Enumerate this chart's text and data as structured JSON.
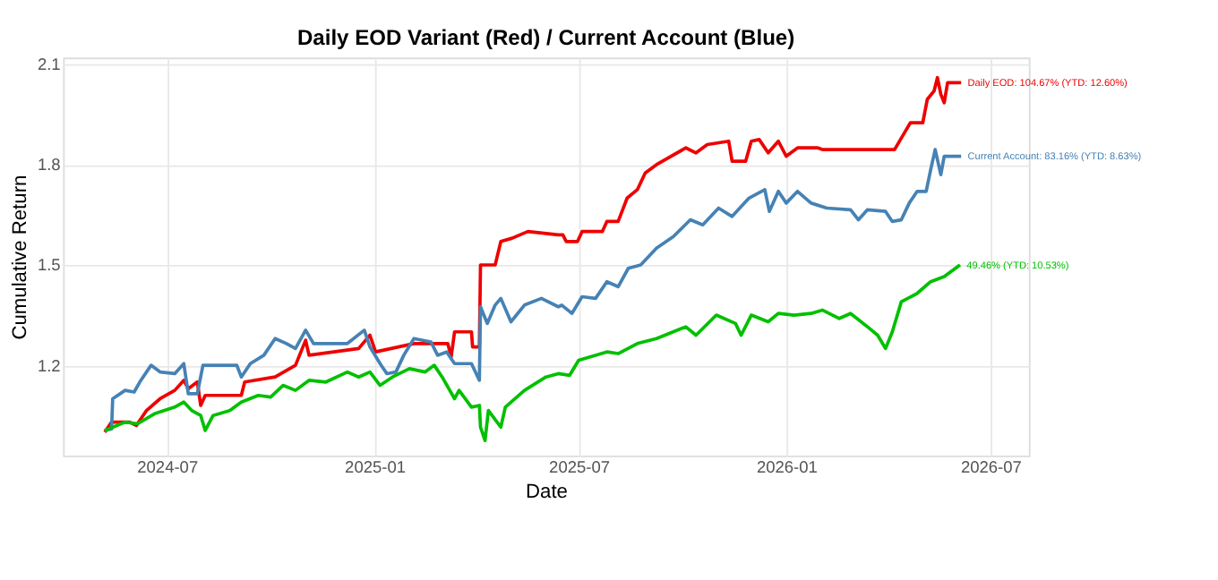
{
  "chart_data": {
    "type": "line",
    "title": "Daily EOD Variant (Red) / Current Account (Blue)",
    "xlabel": "Date",
    "ylabel": "Cumulative Return",
    "xlim": [
      "2024-03-31",
      "2026-08-04"
    ],
    "xticks": [
      "2024-07",
      "2025-01",
      "2025-07",
      "2026-01",
      "2026-07"
    ],
    "ylim": [
      0.93,
      2.12
    ],
    "yticks": [
      1.2,
      1.5,
      1.8,
      2.1
    ],
    "grid": true,
    "legend": false,
    "line_style": "solid",
    "series": [
      {
        "color": "#ee0000",
        "x": [
          "2024-05-07",
          "2024-05-13",
          "2024-05-29",
          "2024-06-04",
          "2024-06-13",
          "2024-06-25",
          "2024-07-08",
          "2024-07-16",
          "2024-07-20",
          "2024-07-28",
          "2024-07-31",
          "2024-08-04",
          "2024-09-05",
          "2024-09-08",
          "2024-10-05",
          "2024-10-23",
          "2024-11-01",
          "2024-11-04",
          "2024-12-18",
          "2024-12-28",
          "2025-01-02",
          "2025-02-05",
          "2025-03-07",
          "2025-03-10",
          "2025-03-13",
          "2025-03-28",
          "2025-03-29",
          "2025-04-04",
          "2025-04-05",
          "2025-04-18",
          "2025-04-23",
          "2025-05-03",
          "2025-05-17",
          "2025-06-13",
          "2025-06-17",
          "2025-06-20",
          "2025-06-30",
          "2025-07-04",
          "2025-07-22",
          "2025-07-26",
          "2025-08-05",
          "2025-08-13",
          "2025-08-22",
          "2025-08-29",
          "2025-09-08",
          "2025-10-04",
          "2025-10-13",
          "2025-10-23",
          "2025-11-11",
          "2025-11-14",
          "2025-11-26",
          "2025-12-01",
          "2025-12-08",
          "2025-12-16",
          "2025-12-25",
          "2026-01-01",
          "2026-01-11",
          "2026-01-29",
          "2026-02-02",
          "2026-04-07",
          "2026-04-14",
          "2026-04-21",
          "2026-05-02",
          "2026-05-06",
          "2026-05-12",
          "2026-05-15",
          "2026-05-18",
          "2026-05-21",
          "2026-05-24",
          "2026-06-05"
        ],
        "values": [
          1.0,
          1.03,
          1.03,
          1.02,
          1.065,
          1.1,
          1.125,
          1.155,
          1.13,
          1.15,
          1.08,
          1.11,
          1.11,
          1.15,
          1.165,
          1.2,
          1.275,
          1.23,
          1.25,
          1.29,
          1.24,
          1.265,
          1.265,
          1.225,
          1.3,
          1.3,
          1.255,
          1.255,
          1.5,
          1.5,
          1.57,
          1.58,
          1.6,
          1.59,
          1.59,
          1.57,
          1.57,
          1.6,
          1.6,
          1.63,
          1.63,
          1.7,
          1.725,
          1.775,
          1.8,
          1.85,
          1.835,
          1.86,
          1.87,
          1.81,
          1.81,
          1.87,
          1.875,
          1.835,
          1.87,
          1.825,
          1.85,
          1.85,
          1.845,
          1.845,
          1.885,
          1.925,
          1.925,
          1.995,
          2.02,
          2.06,
          2.01,
          1.985,
          2.045,
          2.045
        ]
      },
      {
        "color": "#4682b4",
        "x": [
          "2024-05-07",
          "2024-05-13",
          "2024-05-14",
          "2024-05-25",
          "2024-06-02",
          "2024-06-07",
          "2024-06-17",
          "2024-06-25",
          "2024-07-08",
          "2024-07-16",
          "2024-07-20",
          "2024-07-28",
          "2024-08-02",
          "2024-09-01",
          "2024-09-05",
          "2024-09-13",
          "2024-09-25",
          "2024-10-05",
          "2024-10-15",
          "2024-10-23",
          "2024-11-01",
          "2024-11-08",
          "2024-12-08",
          "2024-12-23",
          "2024-12-28",
          "2025-01-06",
          "2025-01-12",
          "2025-01-20",
          "2025-01-27",
          "2025-02-05",
          "2025-02-20",
          "2025-02-26",
          "2025-03-06",
          "2025-03-13",
          "2025-03-28",
          "2025-04-04",
          "2025-04-05",
          "2025-04-11",
          "2025-04-18",
          "2025-04-23",
          "2025-05-02",
          "2025-05-14",
          "2025-05-29",
          "2025-06-13",
          "2025-06-16",
          "2025-06-25",
          "2025-07-04",
          "2025-07-16",
          "2025-07-26",
          "2025-08-05",
          "2025-08-14",
          "2025-08-25",
          "2025-09-08",
          "2025-09-23",
          "2025-10-08",
          "2025-10-19",
          "2025-11-02",
          "2025-11-14",
          "2025-11-29",
          "2025-12-13",
          "2025-12-17",
          "2025-12-25",
          "2026-01-01",
          "2026-01-11",
          "2026-01-23",
          "2026-02-06",
          "2026-02-27",
          "2026-03-06",
          "2026-03-14",
          "2026-03-30",
          "2026-04-05",
          "2026-04-13",
          "2026-04-20",
          "2026-04-27",
          "2026-05-05",
          "2026-05-09",
          "2026-05-13",
          "2026-05-18",
          "2026-05-21",
          "2026-06-05"
        ],
        "values": [
          1.005,
          1.01,
          1.1,
          1.125,
          1.12,
          1.15,
          1.2,
          1.18,
          1.175,
          1.205,
          1.115,
          1.115,
          1.2,
          1.2,
          1.165,
          1.205,
          1.23,
          1.28,
          1.265,
          1.25,
          1.305,
          1.265,
          1.265,
          1.305,
          1.255,
          1.205,
          1.175,
          1.18,
          1.23,
          1.28,
          1.27,
          1.23,
          1.24,
          1.205,
          1.205,
          1.155,
          1.375,
          1.325,
          1.38,
          1.4,
          1.33,
          1.38,
          1.4,
          1.375,
          1.38,
          1.355,
          1.405,
          1.4,
          1.45,
          1.435,
          1.49,
          1.5,
          1.55,
          1.585,
          1.635,
          1.62,
          1.67,
          1.645,
          1.7,
          1.725,
          1.66,
          1.72,
          1.685,
          1.72,
          1.685,
          1.67,
          1.665,
          1.635,
          1.665,
          1.66,
          1.63,
          1.635,
          1.685,
          1.72,
          1.72,
          1.785,
          1.845,
          1.77,
          1.825,
          1.825
        ]
      },
      {
        "color": "#00c000",
        "x": [
          "2024-05-07",
          "2024-05-25",
          "2024-06-05",
          "2024-06-20",
          "2024-07-08",
          "2024-07-16",
          "2024-07-23",
          "2024-07-31",
          "2024-08-04",
          "2024-08-11",
          "2024-08-26",
          "2024-09-05",
          "2024-09-20",
          "2024-10-01",
          "2024-10-12",
          "2024-10-23",
          "2024-11-04",
          "2024-11-19",
          "2024-12-08",
          "2024-12-18",
          "2024-12-28",
          "2025-01-06",
          "2025-01-17",
          "2025-02-01",
          "2025-02-15",
          "2025-02-23",
          "2025-03-02",
          "2025-03-13",
          "2025-03-17",
          "2025-03-28",
          "2025-04-04",
          "2025-04-05",
          "2025-04-09",
          "2025-04-12",
          "2025-04-23",
          "2025-04-27",
          "2025-05-14",
          "2025-06-02",
          "2025-06-13",
          "2025-06-23",
          "2025-07-01",
          "2025-07-26",
          "2025-08-05",
          "2025-08-22",
          "2025-09-08",
          "2025-10-04",
          "2025-10-13",
          "2025-10-31",
          "2025-11-17",
          "2025-11-22",
          "2025-12-01",
          "2025-12-16",
          "2025-12-25",
          "2026-01-08",
          "2026-01-23",
          "2026-02-02",
          "2026-02-17",
          "2026-02-27",
          "2026-03-14",
          "2026-03-23",
          "2026-03-30",
          "2026-04-05",
          "2026-04-13",
          "2026-04-27",
          "2026-05-09",
          "2026-05-21",
          "2026-06-04"
        ],
        "values": [
          1.005,
          1.03,
          1.025,
          1.055,
          1.075,
          1.09,
          1.065,
          1.05,
          1.005,
          1.05,
          1.065,
          1.09,
          1.11,
          1.105,
          1.14,
          1.125,
          1.155,
          1.15,
          1.18,
          1.165,
          1.18,
          1.14,
          1.165,
          1.19,
          1.18,
          1.2,
          1.165,
          1.1,
          1.125,
          1.075,
          1.08,
          1.015,
          0.975,
          1.065,
          1.015,
          1.075,
          1.125,
          1.165,
          1.175,
          1.17,
          1.215,
          1.24,
          1.235,
          1.265,
          1.28,
          1.315,
          1.29,
          1.35,
          1.325,
          1.29,
          1.35,
          1.33,
          1.355,
          1.35,
          1.355,
          1.365,
          1.34,
          1.355,
          1.315,
          1.29,
          1.25,
          1.3,
          1.39,
          1.415,
          1.45,
          1.465,
          1.5
        ]
      }
    ],
    "annotations": [
      {
        "text": "Daily EOD: 104.67% (YTD: 12.60%)",
        "x": "2026-06-05",
        "y": 2.045
      },
      {
        "text": "Current Account: 83.16% (YTD: 8.63%)",
        "x": "2026-06-05",
        "y": 1.825
      },
      {
        "text": "49.46% (YTD: 10.53%)",
        "x": "2026-06-04",
        "y": 1.5
      }
    ]
  }
}
